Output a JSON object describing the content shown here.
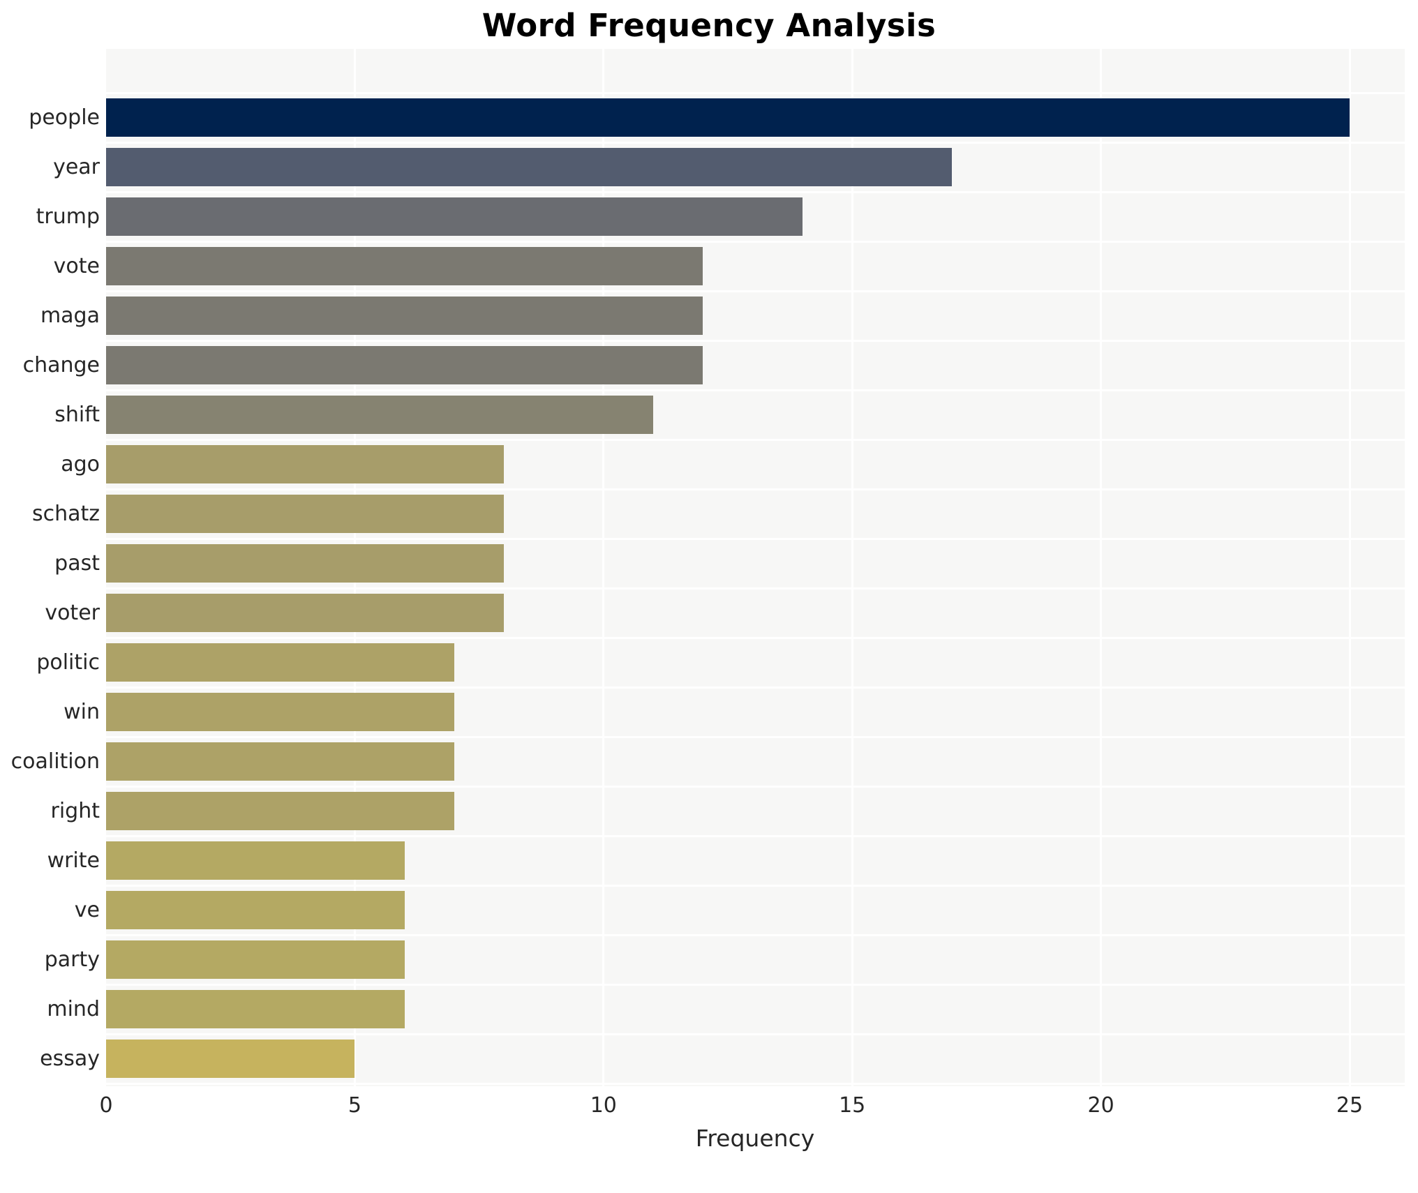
{
  "chart_data": {
    "type": "bar",
    "orientation": "horizontal",
    "title": "Word Frequency Analysis",
    "xlabel": "Frequency",
    "ylabel": "",
    "categories": [
      "people",
      "year",
      "trump",
      "vote",
      "maga",
      "change",
      "shift",
      "ago",
      "schatz",
      "past",
      "voter",
      "politic",
      "win",
      "coalition",
      "right",
      "write",
      "ve",
      "party",
      "mind",
      "essay"
    ],
    "values": [
      25,
      17,
      14,
      12,
      12,
      12,
      11,
      8,
      8,
      8,
      8,
      7,
      7,
      7,
      7,
      6,
      6,
      6,
      6,
      5
    ],
    "bar_colors": [
      "#00224e",
      "#535c6f",
      "#6a6c71",
      "#7b7971",
      "#7b7971",
      "#7b7971",
      "#868371",
      "#a79d6a",
      "#a79d6a",
      "#a79d6a",
      "#a79d6a",
      "#ada267",
      "#ada267",
      "#ada267",
      "#ada267",
      "#b4a963",
      "#b4a963",
      "#b4a963",
      "#b4a963",
      "#c6b35e"
    ],
    "xticks": [
      0,
      5,
      10,
      15,
      20,
      25
    ],
    "xlim": [
      0,
      26.1
    ],
    "grid": "white gridlines on light-gray plot background",
    "legend_position": "none",
    "figure_bg": "#ffffff",
    "plot_bg": "#f7f7f6",
    "gridline_color": "#ffffff",
    "text_color": "#262626",
    "title_color": "#000000"
  }
}
